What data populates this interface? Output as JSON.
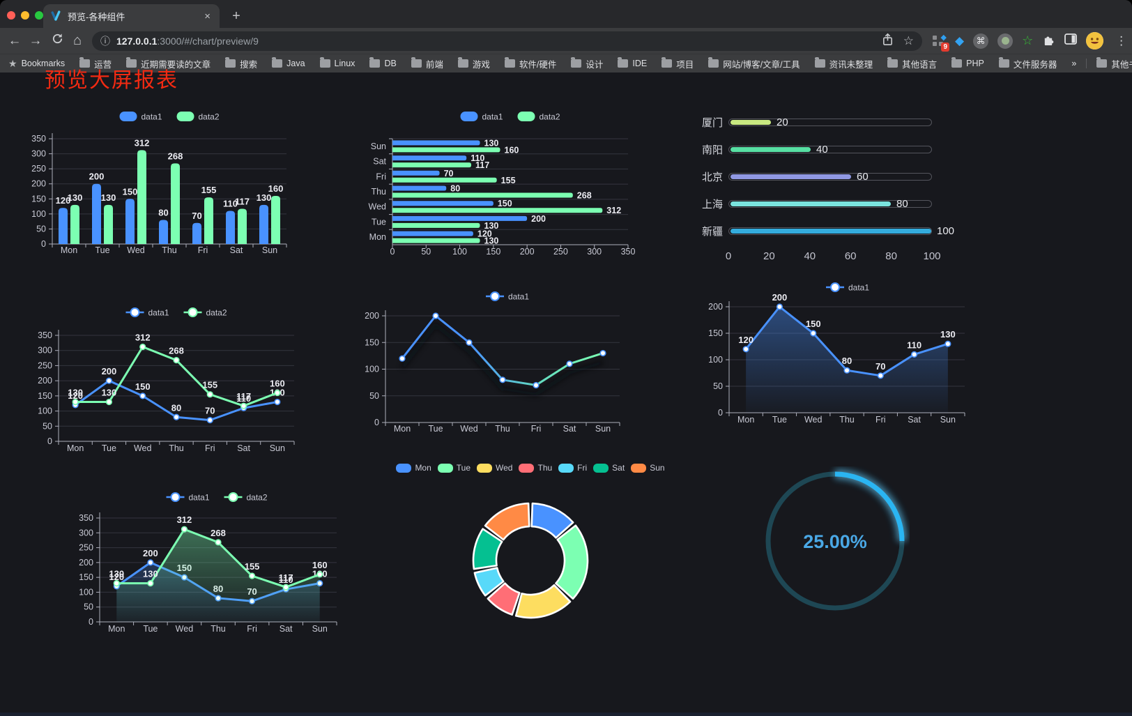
{
  "browser": {
    "tab": {
      "title": "预览-各种组件",
      "close_glyph": "×",
      "new_tab_glyph": "+"
    },
    "url": {
      "domain": "127.0.0.1",
      "path": ":3000/#/chart/preview/9"
    },
    "icons": {
      "back": "←",
      "forward": "→",
      "home": "⌂",
      "info": "ⓘ",
      "star": "☆",
      "bookmarks_star": "★",
      "menu": "⋮",
      "cmd": "⌘",
      "diamond": "◆",
      "green_star": "☆"
    },
    "extensions": {
      "badge": "9"
    },
    "bookmarks": {
      "label": "Bookmarks",
      "folders": [
        "运营",
        "近期需要读的文章",
        "搜索",
        "Java",
        "Linux",
        "DB",
        "前端",
        "游戏",
        "软件/硬件",
        "设计",
        "IDE",
        "项目",
        "网站/博客/文章/工具",
        "资讯未整理",
        "其他语言",
        "PHP",
        "文件服务器"
      ],
      "overflow": "»",
      "other": "其他书签"
    }
  },
  "page": {
    "title": "预览大屏报表",
    "title_color": "#f32a12"
  },
  "chart_data": [
    {
      "id": "bar-grouped",
      "type": "bar",
      "categories": [
        "Mon",
        "Tue",
        "Wed",
        "Thu",
        "Fri",
        "Sat",
        "Sun"
      ],
      "series": [
        {
          "name": "data1",
          "color": "#4992ff",
          "values": [
            120,
            200,
            150,
            80,
            70,
            110,
            130
          ]
        },
        {
          "name": "data2",
          "color": "#7cffb2",
          "values": [
            130,
            130,
            312,
            268,
            155,
            117,
            160
          ]
        }
      ],
      "ylim": [
        0,
        350
      ],
      "yticks": [
        0,
        50,
        100,
        150,
        200,
        250,
        300,
        350
      ],
      "value_labels": true,
      "legend": true,
      "legend_position": "top",
      "grid": true
    },
    {
      "id": "bar-horizontal",
      "type": "hbar",
      "categories": [
        "Mon",
        "Tue",
        "Wed",
        "Thu",
        "Fri",
        "Sat",
        "Sun"
      ],
      "series": [
        {
          "name": "data1",
          "color": "#4992ff",
          "values": [
            120,
            200,
            150,
            80,
            70,
            110,
            130
          ]
        },
        {
          "name": "data2",
          "color": "#7cffb2",
          "values": [
            130,
            130,
            312,
            268,
            155,
            117,
            160
          ]
        }
      ],
      "xlim": [
        0,
        350
      ],
      "xticks": [
        0,
        50,
        100,
        150,
        200,
        250,
        300,
        350
      ],
      "value_labels": true,
      "legend": true,
      "legend_position": "top",
      "grid": true
    },
    {
      "id": "city-progress",
      "type": "progress-bar",
      "rows": [
        {
          "label": "厦门",
          "value": 20,
          "color": "#c9e981"
        },
        {
          "label": "南阳",
          "value": 40,
          "color": "#57dfa3"
        },
        {
          "label": "北京",
          "value": 60,
          "color": "#9098e3"
        },
        {
          "label": "上海",
          "value": 80,
          "color": "#7ae3de"
        },
        {
          "label": "新疆",
          "value": 100,
          "color": "#34acdd"
        }
      ],
      "max": 100,
      "xticks": [
        0,
        20,
        40,
        60,
        80,
        100
      ]
    },
    {
      "id": "line-two-series",
      "type": "line",
      "categories": [
        "Mon",
        "Tue",
        "Wed",
        "Thu",
        "Fri",
        "Sat",
        "Sun"
      ],
      "series": [
        {
          "name": "data1",
          "color": "#4992ff",
          "values": [
            120,
            200,
            150,
            80,
            70,
            110,
            130
          ]
        },
        {
          "name": "data2",
          "color": "#7cffb2",
          "values": [
            130,
            130,
            312,
            268,
            155,
            117,
            160
          ]
        }
      ],
      "ylim": [
        0,
        350
      ],
      "yticks": [
        0,
        50,
        100,
        150,
        200,
        250,
        300,
        350
      ],
      "value_labels": true,
      "legend": true,
      "legend_position": "top",
      "grid": true
    },
    {
      "id": "line-gradient",
      "type": "line",
      "categories": [
        "Mon",
        "Tue",
        "Wed",
        "Thu",
        "Fri",
        "Sat",
        "Sun"
      ],
      "series": [
        {
          "name": "data1",
          "color": "#4992ff",
          "gradient": [
            "#4992ff",
            "#4992ff",
            "#62d9c0",
            "#7cffb2"
          ],
          "values": [
            120,
            200,
            150,
            80,
            70,
            110,
            130
          ]
        }
      ],
      "ylim": [
        0,
        200
      ],
      "yticks": [
        0,
        50,
        100,
        150,
        200
      ],
      "value_labels": false,
      "legend": true,
      "legend_position": "top",
      "shadow": true,
      "grid": true
    },
    {
      "id": "area-single",
      "type": "area",
      "categories": [
        "Mon",
        "Tue",
        "Wed",
        "Thu",
        "Fri",
        "Sat",
        "Sun"
      ],
      "series": [
        {
          "name": "data1",
          "color": "#4992ff",
          "area": true,
          "values": [
            120,
            200,
            150,
            80,
            70,
            110,
            130
          ]
        }
      ],
      "ylim": [
        0,
        200
      ],
      "yticks": [
        0,
        50,
        100,
        150,
        200
      ],
      "value_labels": true,
      "legend": true,
      "legend_position": "top",
      "grid": true
    },
    {
      "id": "area-two-series",
      "type": "area",
      "categories": [
        "Mon",
        "Tue",
        "Wed",
        "Thu",
        "Fri",
        "Sat",
        "Sun"
      ],
      "series": [
        {
          "name": "data1",
          "color": "#4992ff",
          "area": true,
          "values": [
            120,
            200,
            150,
            80,
            70,
            110,
            130
          ]
        },
        {
          "name": "data2",
          "color": "#7cffb2",
          "area": true,
          "values": [
            130,
            130,
            312,
            268,
            155,
            117,
            160
          ]
        }
      ],
      "ylim": [
        0,
        350
      ],
      "yticks": [
        0,
        50,
        100,
        150,
        200,
        250,
        300,
        350
      ],
      "value_labels": true,
      "legend": true,
      "legend_position": "top",
      "grid": true
    },
    {
      "id": "donut",
      "type": "pie",
      "categories": [
        "Mon",
        "Tue",
        "Wed",
        "Thu",
        "Fri",
        "Sat",
        "Sun"
      ],
      "values": [
        120,
        200,
        150,
        80,
        70,
        110,
        130
      ],
      "colors": [
        "#4992ff",
        "#7cffb2",
        "#fddd60",
        "#ff6e76",
        "#58d9f9",
        "#05c091",
        "#ff8a45"
      ],
      "legend": true,
      "legend_position": "top",
      "inner_radius_ratio": 0.6,
      "border_color": "#ffffff"
    },
    {
      "id": "gauge",
      "type": "gauge",
      "value": 25,
      "label": "25.00%",
      "arc_color": "#2ab5f2",
      "track_color": "#1e4754",
      "text_color": "#4aa8e6"
    }
  ]
}
